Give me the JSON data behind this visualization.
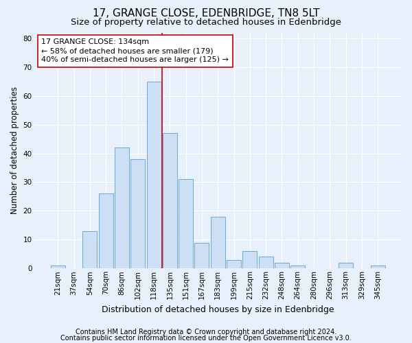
{
  "title": "17, GRANGE CLOSE, EDENBRIDGE, TN8 5LT",
  "subtitle": "Size of property relative to detached houses in Edenbridge",
  "xlabel": "Distribution of detached houses by size in Edenbridge",
  "ylabel": "Number of detached properties",
  "categories": [
    "21sqm",
    "37sqm",
    "54sqm",
    "70sqm",
    "86sqm",
    "102sqm",
    "118sqm",
    "135sqm",
    "151sqm",
    "167sqm",
    "183sqm",
    "199sqm",
    "215sqm",
    "232sqm",
    "248sqm",
    "264sqm",
    "280sqm",
    "296sqm",
    "313sqm",
    "329sqm",
    "345sqm"
  ],
  "values": [
    1,
    0,
    13,
    26,
    42,
    38,
    65,
    47,
    31,
    9,
    18,
    3,
    6,
    4,
    2,
    1,
    0,
    0,
    2,
    0,
    1
  ],
  "bar_color": "#ccdff5",
  "bar_edge_color": "#6aaad4",
  "vline_index": 7,
  "vline_color": "#cc0000",
  "annotation_line1": "17 GRANGE CLOSE: 134sqm",
  "annotation_line2": "← 58% of detached houses are smaller (179)",
  "annotation_line3": "40% of semi-detached houses are larger (125) →",
  "annotation_box_color": "#ffffff",
  "annotation_box_edge": "#cc0000",
  "ylim": [
    0,
    82
  ],
  "yticks": [
    0,
    10,
    20,
    30,
    40,
    50,
    60,
    70,
    80
  ],
  "footer_line1": "Contains HM Land Registry data © Crown copyright and database right 2024.",
  "footer_line2": "Contains public sector information licensed under the Open Government Licence v3.0.",
  "bg_color": "#e8f0fb",
  "plot_bg_color": "#e8f0fb",
  "grid_color": "#ffffff",
  "title_fontsize": 11,
  "subtitle_fontsize": 9.5,
  "xlabel_fontsize": 9,
  "ylabel_fontsize": 8.5,
  "tick_fontsize": 7.5,
  "annotation_fontsize": 8,
  "footer_fontsize": 7
}
